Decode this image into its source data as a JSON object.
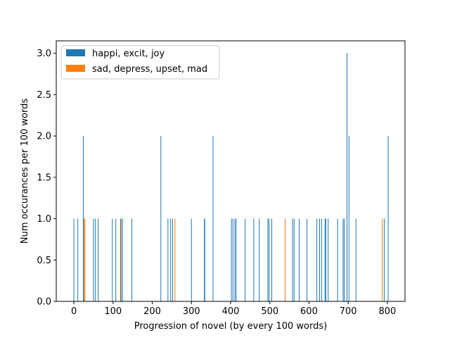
{
  "chart_data": {
    "type": "bar",
    "xlabel": "Progression of novel (by every 100 words)",
    "ylabel": "Num occurances per 100 words",
    "xlim": [
      -45,
      845
    ],
    "ylim": [
      0,
      3.15
    ],
    "xticks": [
      0,
      100,
      200,
      300,
      400,
      500,
      600,
      700,
      800
    ],
    "yticks": [
      0.0,
      0.5,
      1.0,
      1.5,
      2.0,
      2.5,
      3.0
    ],
    "ytick_labels": [
      "0.0",
      "0.5",
      "1.0",
      "1.5",
      "2.0",
      "2.5",
      "3.0"
    ],
    "grid": false,
    "legend_position": "upper-left",
    "series": [
      {
        "name": "happi, excit, joy",
        "color": "#1f77b4",
        "points": [
          [
            0,
            1
          ],
          [
            10,
            1
          ],
          [
            24,
            2
          ],
          [
            50,
            1
          ],
          [
            55,
            1
          ],
          [
            62,
            1
          ],
          [
            98,
            1
          ],
          [
            107,
            1
          ],
          [
            119,
            1
          ],
          [
            124,
            1
          ],
          [
            148,
            1
          ],
          [
            222,
            2
          ],
          [
            240,
            1
          ],
          [
            247,
            1
          ],
          [
            252,
            1
          ],
          [
            300,
            1
          ],
          [
            333,
            1
          ],
          [
            334,
            1
          ],
          [
            355,
            2
          ],
          [
            402,
            1
          ],
          [
            406,
            1
          ],
          [
            411,
            1
          ],
          [
            414,
            1
          ],
          [
            437,
            1
          ],
          [
            459,
            1
          ],
          [
            473,
            1
          ],
          [
            495,
            1
          ],
          [
            498,
            1
          ],
          [
            505,
            1
          ],
          [
            539,
            1
          ],
          [
            558,
            1
          ],
          [
            562,
            1
          ],
          [
            575,
            1
          ],
          [
            595,
            1
          ],
          [
            620,
            1
          ],
          [
            627,
            1
          ],
          [
            632,
            1
          ],
          [
            641,
            1
          ],
          [
            643,
            1
          ],
          [
            649,
            1
          ],
          [
            673,
            1
          ],
          [
            687,
            1
          ],
          [
            690,
            1
          ],
          [
            697,
            3
          ],
          [
            702,
            2
          ],
          [
            720,
            1
          ],
          [
            792,
            1
          ],
          [
            802,
            2
          ]
        ]
      },
      {
        "name": "sad, depress, upset, mad",
        "color": "#ff7f0e",
        "points": [
          [
            26,
            1
          ],
          [
            28,
            1
          ],
          [
            121,
            1
          ],
          [
            258,
            1
          ],
          [
            539,
            1
          ],
          [
            787,
            1
          ]
        ]
      }
    ]
  }
}
